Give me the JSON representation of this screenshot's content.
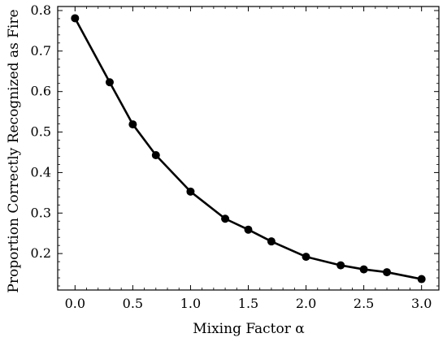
{
  "chart_data": {
    "type": "line",
    "title": "",
    "xlabel": "Mixing Factor α",
    "ylabel": "Proportion Correctly Recognized as Fire",
    "xlim": [
      -0.15,
      3.15
    ],
    "ylim": [
      0.11,
      0.81
    ],
    "xticks": [
      0.0,
      0.5,
      1.0,
      1.5,
      2.0,
      2.5,
      3.0
    ],
    "xtick_labels": [
      "0.0",
      "0.5",
      "1.0",
      "1.5",
      "2.0",
      "2.5",
      "3.0"
    ],
    "yticks": [
      0.2,
      0.3,
      0.4,
      0.5,
      0.6,
      0.7,
      0.8
    ],
    "ytick_labels": [
      "0.2",
      "0.3",
      "0.4",
      "0.5",
      "0.6",
      "0.7",
      "0.8"
    ],
    "grid": false,
    "legend": false,
    "series": [
      {
        "color": "#000000",
        "marker": "circle",
        "x": [
          0.0,
          0.3,
          0.5,
          0.7,
          1.0,
          1.3,
          1.5,
          1.7,
          2.0,
          2.3,
          2.5,
          2.7,
          3.0
        ],
        "y": [
          0.781,
          0.623,
          0.519,
          0.443,
          0.353,
          0.286,
          0.259,
          0.23,
          0.192,
          0.171,
          0.161,
          0.154,
          0.137
        ]
      }
    ]
  }
}
